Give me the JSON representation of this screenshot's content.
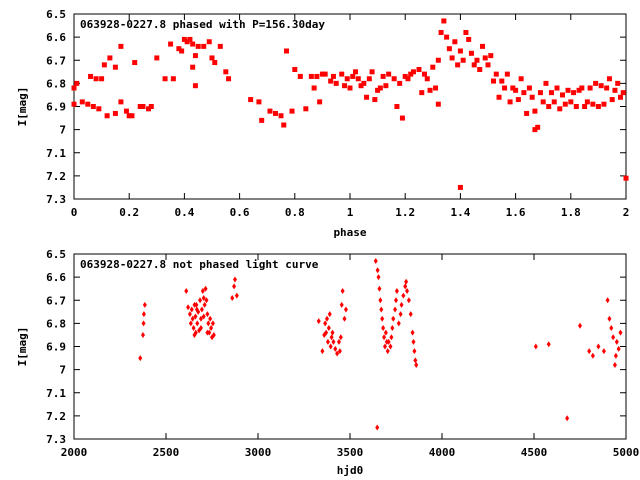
{
  "chart_data": [
    {
      "type": "scatter",
      "title": "063928-0227.8 phased with P=156.30day",
      "xlabel": "phase",
      "ylabel": "I[mag]",
      "xlim": [
        0,
        2
      ],
      "ylim": [
        7.3,
        6.5
      ],
      "y_inverted": true,
      "x_ticks": [
        "0",
        "0.2",
        "0.4",
        "0.6",
        "0.8",
        "1",
        "1.2",
        "1.4",
        "1.6",
        "1.8",
        "2"
      ],
      "y_ticks": [
        "6.5",
        "6.6",
        "6.7",
        "6.8",
        "6.9",
        "7",
        "7.1",
        "7.2",
        "7.3"
      ],
      "marker_color": "#ff0000",
      "grid": false,
      "points": [
        [
          0.0,
          6.82
        ],
        [
          0.0,
          6.89
        ],
        [
          0.01,
          6.8
        ],
        [
          0.03,
          6.88
        ],
        [
          0.05,
          6.89
        ],
        [
          0.06,
          6.77
        ],
        [
          0.08,
          6.78
        ],
        [
          0.1,
          6.78
        ],
        [
          0.07,
          6.9
        ],
        [
          0.09,
          6.91
        ],
        [
          0.11,
          6.72
        ],
        [
          0.13,
          6.69
        ],
        [
          0.12,
          6.94
        ],
        [
          0.15,
          6.93
        ],
        [
          0.15,
          6.73
        ],
        [
          0.17,
          6.88
        ],
        [
          0.17,
          6.64
        ],
        [
          0.19,
          6.92
        ],
        [
          0.2,
          6.94
        ],
        [
          0.21,
          6.94
        ],
        [
          0.22,
          6.71
        ],
        [
          0.24,
          6.9
        ],
        [
          0.25,
          6.9
        ],
        [
          0.27,
          6.91
        ],
        [
          0.28,
          6.9
        ],
        [
          0.3,
          6.69
        ],
        [
          0.33,
          6.78
        ],
        [
          0.35,
          6.63
        ],
        [
          0.36,
          6.78
        ],
        [
          0.38,
          6.65
        ],
        [
          0.39,
          6.66
        ],
        [
          0.4,
          6.61
        ],
        [
          0.41,
          6.62
        ],
        [
          0.42,
          6.61
        ],
        [
          0.43,
          6.63
        ],
        [
          0.43,
          6.73
        ],
        [
          0.44,
          6.68
        ],
        [
          0.44,
          6.81
        ],
        [
          0.45,
          6.64
        ],
        [
          0.47,
          6.64
        ],
        [
          0.49,
          6.62
        ],
        [
          0.5,
          6.69
        ],
        [
          0.51,
          6.71
        ],
        [
          0.53,
          6.64
        ],
        [
          0.55,
          6.75
        ],
        [
          0.56,
          6.78
        ],
        [
          0.64,
          6.87
        ],
        [
          0.67,
          6.88
        ],
        [
          0.68,
          6.96
        ],
        [
          0.71,
          6.92
        ],
        [
          0.73,
          6.93
        ],
        [
          0.75,
          6.94
        ],
        [
          0.76,
          6.98
        ],
        [
          0.77,
          6.66
        ],
        [
          0.79,
          6.92
        ],
        [
          0.8,
          6.74
        ],
        [
          0.82,
          6.77
        ],
        [
          0.84,
          6.91
        ],
        [
          0.86,
          6.77
        ],
        [
          0.87,
          6.82
        ],
        [
          0.88,
          6.77
        ],
        [
          0.89,
          6.88
        ],
        [
          0.9,
          6.76
        ],
        [
          0.91,
          6.76
        ],
        [
          0.93,
          6.79
        ],
        [
          0.94,
          6.77
        ],
        [
          0.95,
          6.8
        ],
        [
          0.97,
          6.76
        ],
        [
          0.98,
          6.81
        ],
        [
          0.99,
          6.78
        ],
        [
          1.0,
          6.82
        ],
        [
          1.01,
          6.77
        ],
        [
          1.02,
          6.75
        ],
        [
          1.03,
          6.78
        ],
        [
          1.04,
          6.81
        ],
        [
          1.05,
          6.8
        ],
        [
          1.06,
          6.86
        ],
        [
          1.07,
          6.78
        ],
        [
          1.08,
          6.75
        ],
        [
          1.09,
          6.87
        ],
        [
          1.1,
          6.83
        ],
        [
          1.11,
          6.82
        ],
        [
          1.12,
          6.77
        ],
        [
          1.13,
          6.81
        ],
        [
          1.14,
          6.76
        ],
        [
          1.16,
          6.78
        ],
        [
          1.17,
          6.9
        ],
        [
          1.18,
          6.8
        ],
        [
          1.19,
          6.95
        ],
        [
          1.2,
          6.77
        ],
        [
          1.21,
          6.78
        ],
        [
          1.22,
          6.76
        ],
        [
          1.23,
          6.75
        ],
        [
          1.25,
          6.74
        ],
        [
          1.26,
          6.84
        ],
        [
          1.27,
          6.76
        ],
        [
          1.28,
          6.78
        ],
        [
          1.29,
          6.83
        ],
        [
          1.3,
          6.73
        ],
        [
          1.31,
          6.82
        ],
        [
          1.32,
          6.7
        ],
        [
          1.32,
          6.89
        ],
        [
          1.33,
          6.58
        ],
        [
          1.34,
          6.53
        ],
        [
          1.35,
          6.6
        ],
        [
          1.36,
          6.65
        ],
        [
          1.37,
          6.69
        ],
        [
          1.38,
          6.62
        ],
        [
          1.39,
          6.72
        ],
        [
          1.4,
          7.25
        ],
        [
          1.4,
          6.66
        ],
        [
          1.41,
          6.7
        ],
        [
          1.42,
          6.58
        ],
        [
          1.43,
          6.61
        ],
        [
          1.44,
          6.67
        ],
        [
          1.45,
          6.72
        ],
        [
          1.46,
          6.7
        ],
        [
          1.47,
          6.74
        ],
        [
          1.48,
          6.64
        ],
        [
          1.49,
          6.69
        ],
        [
          1.5,
          6.72
        ],
        [
          1.51,
          6.68
        ],
        [
          1.52,
          6.79
        ],
        [
          1.53,
          6.76
        ],
        [
          1.54,
          6.86
        ],
        [
          1.55,
          6.79
        ],
        [
          1.56,
          6.82
        ],
        [
          1.57,
          6.76
        ],
        [
          1.58,
          6.88
        ],
        [
          1.59,
          6.82
        ],
        [
          1.6,
          6.83
        ],
        [
          1.61,
          6.87
        ],
        [
          1.62,
          6.78
        ],
        [
          1.63,
          6.84
        ],
        [
          1.64,
          6.93
        ],
        [
          1.65,
          6.82
        ],
        [
          1.66,
          6.86
        ],
        [
          1.67,
          6.92
        ],
        [
          1.67,
          7.0
        ],
        [
          1.68,
          6.99
        ],
        [
          1.69,
          6.84
        ],
        [
          1.7,
          6.88
        ],
        [
          1.71,
          6.8
        ],
        [
          1.72,
          6.9
        ],
        [
          1.73,
          6.84
        ],
        [
          1.74,
          6.88
        ],
        [
          1.75,
          6.82
        ],
        [
          1.76,
          6.91
        ],
        [
          1.77,
          6.85
        ],
        [
          1.78,
          6.89
        ],
        [
          1.79,
          6.83
        ],
        [
          1.8,
          6.88
        ],
        [
          1.81,
          6.84
        ],
        [
          1.82,
          6.9
        ],
        [
          1.83,
          6.83
        ],
        [
          1.84,
          6.82
        ],
        [
          1.85,
          6.9
        ],
        [
          1.86,
          6.88
        ],
        [
          1.87,
          6.82
        ],
        [
          1.88,
          6.89
        ],
        [
          1.89,
          6.8
        ],
        [
          1.9,
          6.9
        ],
        [
          1.91,
          6.81
        ],
        [
          1.92,
          6.89
        ],
        [
          1.93,
          6.82
        ],
        [
          1.94,
          6.78
        ],
        [
          1.95,
          6.87
        ],
        [
          1.96,
          6.83
        ],
        [
          1.97,
          6.8
        ],
        [
          1.98,
          6.86
        ],
        [
          1.99,
          6.84
        ],
        [
          2.0,
          7.21
        ]
      ]
    },
    {
      "type": "scatter",
      "title": "063928-0227.8 not phased light curve",
      "xlabel": "hjd0",
      "ylabel": "I[mag]",
      "xlim": [
        2000,
        5000
      ],
      "ylim": [
        7.3,
        6.5
      ],
      "y_inverted": true,
      "x_ticks": [
        "2000",
        "2500",
        "3000",
        "3500",
        "4000",
        "4500",
        "5000"
      ],
      "y_ticks": [
        "6.5",
        "6.6",
        "6.7",
        "6.8",
        "6.9",
        "7",
        "7.1",
        "7.2",
        "7.3"
      ],
      "marker_color": "#ff0000",
      "grid": false,
      "points": [
        [
          2360,
          6.95
        ],
        [
          2375,
          6.85
        ],
        [
          2378,
          6.8
        ],
        [
          2385,
          6.72
        ],
        [
          2380,
          6.76
        ],
        [
          2610,
          6.66
        ],
        [
          2620,
          6.73
        ],
        [
          2630,
          6.76
        ],
        [
          2635,
          6.8
        ],
        [
          2640,
          6.74
        ],
        [
          2645,
          6.78
        ],
        [
          2650,
          6.82
        ],
        [
          2655,
          6.85
        ],
        [
          2660,
          6.77
        ],
        [
          2665,
          6.72
        ],
        [
          2670,
          6.8
        ],
        [
          2675,
          6.75
        ],
        [
          2680,
          6.83
        ],
        [
          2685,
          6.7
        ],
        [
          2690,
          6.78
        ],
        [
          2695,
          6.74
        ],
        [
          2700,
          6.66
        ],
        [
          2705,
          6.69
        ],
        [
          2710,
          6.72
        ],
        [
          2715,
          6.65
        ],
        [
          2720,
          6.7
        ],
        [
          2725,
          6.76
        ],
        [
          2730,
          6.8
        ],
        [
          2735,
          6.84
        ],
        [
          2740,
          6.78
        ],
        [
          2745,
          6.82
        ],
        [
          2750,
          6.86
        ],
        [
          2755,
          6.8
        ],
        [
          2760,
          6.85
        ],
        [
          2655,
          6.72
        ],
        [
          2662,
          6.84
        ],
        [
          2668,
          6.74
        ],
        [
          2690,
          6.82
        ],
        [
          2705,
          6.77
        ],
        [
          2725,
          6.84
        ],
        [
          2860,
          6.69
        ],
        [
          2870,
          6.64
        ],
        [
          2875,
          6.61
        ],
        [
          2885,
          6.68
        ],
        [
          3330,
          6.79
        ],
        [
          3350,
          6.92
        ],
        [
          3360,
          6.85
        ],
        [
          3365,
          6.8
        ],
        [
          3370,
          6.84
        ],
        [
          3375,
          6.78
        ],
        [
          3380,
          6.88
        ],
        [
          3385,
          6.82
        ],
        [
          3390,
          6.76
        ],
        [
          3395,
          6.9
        ],
        [
          3400,
          6.86
        ],
        [
          3405,
          6.84
        ],
        [
          3410,
          6.88
        ],
        [
          3420,
          6.91
        ],
        [
          3430,
          6.93
        ],
        [
          3440,
          6.88
        ],
        [
          3445,
          6.92
        ],
        [
          3450,
          6.86
        ],
        [
          3455,
          6.72
        ],
        [
          3460,
          6.66
        ],
        [
          3470,
          6.78
        ],
        [
          3478,
          6.74
        ],
        [
          3640,
          6.53
        ],
        [
          3648,
          7.25
        ],
        [
          3650,
          6.57
        ],
        [
          3655,
          6.6
        ],
        [
          3660,
          6.65
        ],
        [
          3665,
          6.7
        ],
        [
          3670,
          6.74
        ],
        [
          3675,
          6.78
        ],
        [
          3680,
          6.82
        ],
        [
          3685,
          6.86
        ],
        [
          3690,
          6.9
        ],
        [
          3695,
          6.84
        ],
        [
          3700,
          6.88
        ],
        [
          3705,
          6.92
        ],
        [
          3710,
          6.88
        ],
        [
          3720,
          6.9
        ],
        [
          3725,
          6.86
        ],
        [
          3730,
          6.82
        ],
        [
          3735,
          6.78
        ],
        [
          3745,
          6.74
        ],
        [
          3750,
          6.7
        ],
        [
          3755,
          6.66
        ],
        [
          3765,
          6.8
        ],
        [
          3775,
          6.76
        ],
        [
          3780,
          6.72
        ],
        [
          3790,
          6.68
        ],
        [
          3800,
          6.64
        ],
        [
          3805,
          6.62
        ],
        [
          3810,
          6.66
        ],
        [
          3820,
          6.7
        ],
        [
          3830,
          6.76
        ],
        [
          3840,
          6.84
        ],
        [
          3845,
          6.88
        ],
        [
          3850,
          6.92
        ],
        [
          3855,
          6.96
        ],
        [
          3860,
          6.98
        ],
        [
          4510,
          6.9
        ],
        [
          4580,
          6.89
        ],
        [
          4680,
          7.21
        ],
        [
          4750,
          6.81
        ],
        [
          4800,
          6.92
        ],
        [
          4820,
          6.94
        ],
        [
          4850,
          6.9
        ],
        [
          4880,
          6.92
        ],
        [
          4900,
          6.7
        ],
        [
          4910,
          6.78
        ],
        [
          4920,
          6.82
        ],
        [
          4930,
          6.86
        ],
        [
          4940,
          6.98
        ],
        [
          4945,
          6.94
        ],
        [
          4950,
          6.88
        ],
        [
          4960,
          6.91
        ],
        [
          4970,
          6.84
        ]
      ]
    }
  ]
}
